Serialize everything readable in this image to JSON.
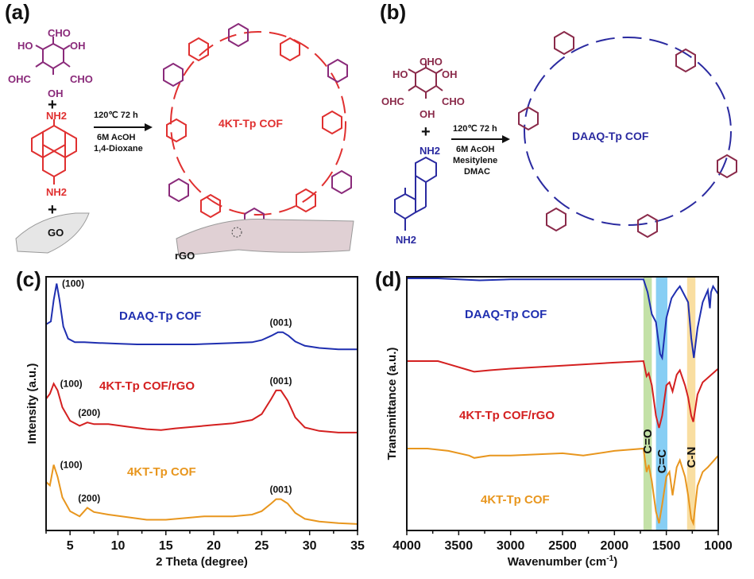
{
  "panels": {
    "a": {
      "label": "(a)",
      "reactant1": {
        "top": "CHO",
        "left_upper": "HO",
        "right_upper": "OH",
        "left_lower": "OHC",
        "right_lower": "CHO",
        "bottom": "OH"
      },
      "plus": "+",
      "reactant2": {
        "top": "NH2",
        "bottom": "NH2"
      },
      "plus2": "+",
      "go_label": "GO",
      "conditions": [
        "120℃ 72 h",
        "6M AcOH",
        "1,4-Dioxane"
      ],
      "product_label": "4KT-Tp COF",
      "rgo_label": "rGO",
      "colors": {
        "tp": "#8a2a7a",
        "amine": "#e03030"
      }
    },
    "b": {
      "label": "(b)",
      "reactant1": {
        "top": "CHO",
        "left_upper": "HO",
        "right_upper": "OH",
        "left_lower": "OHC",
        "right_lower": "CHO",
        "bottom": "OH"
      },
      "plus": "+",
      "reactant2": {
        "top": "NH2",
        "bottom": "NH2"
      },
      "conditions": [
        "120℃ 72 h",
        "6M AcOH",
        "Mesitylene",
        "DMAC"
      ],
      "product_label": "DAAQ-Tp COF",
      "colors": {
        "tp": "#8a2a4a",
        "amine": "#2a2aa0"
      }
    },
    "c": {
      "label": "(c)"
    },
    "d": {
      "label": "(d)"
    }
  },
  "chart_data": [
    {
      "type": "line",
      "panel": "c",
      "title": "",
      "xlabel": "2 Theta (degree)",
      "ylabel": "Intensity (a.u.)",
      "xlim": [
        2.5,
        35
      ],
      "xticks": [
        5,
        10,
        15,
        20,
        25,
        30,
        35
      ],
      "yticks": [],
      "grid": false,
      "legend": "none",
      "series": [
        {
          "name": "DAAQ-Tp COF",
          "color": "#1f2fb0",
          "offset": 2.0,
          "x": [
            2.5,
            3.0,
            3.3,
            3.6,
            3.9,
            4.3,
            4.8,
            5.5,
            6.5,
            8,
            10,
            12,
            14,
            16,
            18,
            20,
            22,
            24,
            25,
            26,
            26.7,
            27.2,
            27.8,
            28.5,
            29.5,
            31,
            33,
            35
          ],
          "y": [
            0.38,
            0.42,
            0.72,
            0.95,
            0.72,
            0.35,
            0.18,
            0.13,
            0.13,
            0.12,
            0.11,
            0.1,
            0.1,
            0.1,
            0.1,
            0.11,
            0.12,
            0.13,
            0.16,
            0.22,
            0.27,
            0.27,
            0.22,
            0.14,
            0.08,
            0.05,
            0.03,
            0.03
          ],
          "annotations": [
            {
              "text": "(100)",
              "x": 3.5
            },
            {
              "text": "(001)",
              "x": 27
            }
          ],
          "label": "DAAQ-Tp COF"
        },
        {
          "name": "4KT-Tp COF/rGO",
          "color": "#d42020",
          "offset": 1.0,
          "x": [
            2.5,
            2.9,
            3.3,
            3.7,
            4.2,
            5,
            6,
            6.8,
            7.5,
            9,
            11,
            13,
            14.5,
            16,
            18,
            20,
            22,
            24,
            25,
            26,
            26.5,
            27,
            27.7,
            28.5,
            29.5,
            31,
            33,
            35
          ],
          "y": [
            0.42,
            0.48,
            0.6,
            0.52,
            0.32,
            0.16,
            0.1,
            0.14,
            0.12,
            0.12,
            0.09,
            0.06,
            0.05,
            0.07,
            0.09,
            0.11,
            0.13,
            0.17,
            0.24,
            0.42,
            0.52,
            0.52,
            0.4,
            0.2,
            0.08,
            0.04,
            0.02,
            0.02
          ],
          "annotations": [
            {
              "text": "(100)",
              "x": 3.3
            },
            {
              "text": "(200)",
              "x": 7
            },
            {
              "text": "(001)",
              "x": 27
            }
          ],
          "label": "4KT-Tp COF/rGO"
        },
        {
          "name": "4KT-Tp COF",
          "color": "#e8961e",
          "offset": 0.0,
          "x": [
            2.5,
            2.9,
            3.3,
            3.7,
            4.2,
            5,
            6,
            6.8,
            7.5,
            9,
            11,
            13,
            15,
            17,
            19,
            20,
            22,
            24,
            25,
            26,
            26.5,
            27,
            27.7,
            28.5,
            29.5,
            31,
            33,
            35
          ],
          "y": [
            0.5,
            0.46,
            0.7,
            0.56,
            0.32,
            0.16,
            0.1,
            0.2,
            0.15,
            0.12,
            0.09,
            0.06,
            0.06,
            0.08,
            0.1,
            0.1,
            0.1,
            0.12,
            0.16,
            0.25,
            0.3,
            0.3,
            0.25,
            0.14,
            0.07,
            0.04,
            0.02,
            0.01
          ],
          "annotations": [
            {
              "text": "(100)",
              "x": 3.3
            },
            {
              "text": "(200)",
              "x": 7
            },
            {
              "text": "(001)",
              "x": 27
            }
          ],
          "label": "4KT-Tp COF"
        }
      ]
    },
    {
      "type": "line",
      "panel": "d",
      "title": "",
      "xlabel": "Wavenumber (cm-1)",
      "ylabel": "Transmittance (a.u.)",
      "xlim": [
        4000,
        1000
      ],
      "xticks": [
        4000,
        3500,
        3000,
        2500,
        2000,
        1500,
        1000
      ],
      "yticks": [],
      "grid": false,
      "legend": "none",
      "bands": [
        {
          "label": "C=O",
          "from": 1720,
          "to": 1640,
          "color": "#b9dc98"
        },
        {
          "label": "C=C",
          "from": 1600,
          "to": 1490,
          "color": "#72c6f2"
        },
        {
          "label": "C-N",
          "from": 1300,
          "to": 1220,
          "color": "#f8d890"
        }
      ],
      "series": [
        {
          "name": "DAAQ-Tp COF",
          "color": "#1f2fb0",
          "x": [
            4000,
            3700,
            3500,
            3300,
            3000,
            2500,
            2000,
            1720,
            1680,
            1640,
            1600,
            1560,
            1540,
            1500,
            1450,
            1400,
            1370,
            1330,
            1290,
            1260,
            1235,
            1200,
            1150,
            1100,
            1080,
            1070,
            1050,
            1000
          ],
          "y": [
            1.0,
            1.0,
            0.995,
            0.99,
            0.995,
            0.995,
            0.995,
            0.995,
            0.93,
            0.82,
            0.78,
            0.62,
            0.6,
            0.8,
            0.9,
            0.94,
            0.96,
            0.92,
            0.88,
            0.7,
            0.6,
            0.75,
            0.88,
            0.94,
            0.85,
            0.93,
            0.96,
            0.92
          ],
          "label": "DAAQ-Tp COF"
        },
        {
          "name": "4KT-Tp COF/rGO",
          "color": "#d42020",
          "x": [
            4000,
            3700,
            3600,
            3400,
            3350,
            3200,
            3000,
            2500,
            2000,
            1720,
            1690,
            1670,
            1640,
            1600,
            1570,
            1540,
            1500,
            1470,
            1440,
            1400,
            1370,
            1320,
            1290,
            1260,
            1240,
            1200,
            1150,
            1100,
            1000
          ],
          "y": [
            0.66,
            0.66,
            0.64,
            0.6,
            0.59,
            0.6,
            0.61,
            0.63,
            0.65,
            0.66,
            0.56,
            0.58,
            0.5,
            0.3,
            0.22,
            0.3,
            0.5,
            0.52,
            0.46,
            0.57,
            0.6,
            0.5,
            0.42,
            0.3,
            0.26,
            0.44,
            0.52,
            0.55,
            0.61
          ],
          "label": "4KT-Tp COF/rGO"
        },
        {
          "name": "4KT-Tp COF",
          "color": "#e8961e",
          "x": [
            4000,
            3800,
            3600,
            3400,
            3350,
            3200,
            3000,
            2500,
            2300,
            2000,
            1720,
            1690,
            1670,
            1640,
            1600,
            1570,
            1540,
            1500,
            1470,
            1440,
            1400,
            1370,
            1320,
            1290,
            1260,
            1240,
            1200,
            1150,
            1100,
            1000
          ],
          "y": [
            0.32,
            0.32,
            0.31,
            0.29,
            0.28,
            0.29,
            0.29,
            0.3,
            0.29,
            0.31,
            0.32,
            0.22,
            0.25,
            0.18,
            0.05,
            0.0,
            0.08,
            0.2,
            0.22,
            0.12,
            0.24,
            0.27,
            0.2,
            0.12,
            0.02,
            0.0,
            0.16,
            0.22,
            0.24,
            0.29
          ],
          "label": "4KT-Tp COF"
        }
      ]
    }
  ]
}
